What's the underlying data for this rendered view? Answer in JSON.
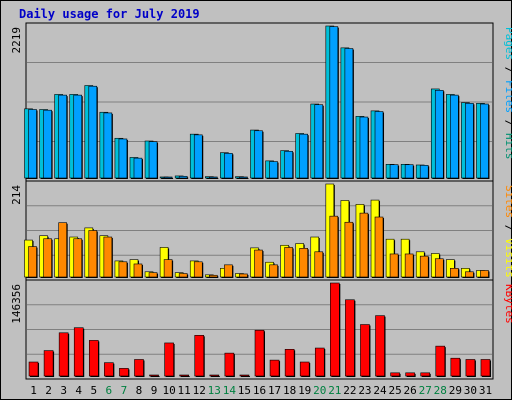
{
  "chart_data": {
    "type": "bar",
    "title": "Daily usage for July 2019",
    "days": [
      "1",
      "2",
      "3",
      "4",
      "5",
      "6",
      "7",
      "8",
      "9",
      "10",
      "11",
      "12",
      "13",
      "14",
      "15",
      "16",
      "17",
      "18",
      "19",
      "20",
      "21",
      "22",
      "23",
      "24",
      "25",
      "26",
      "27",
      "28",
      "29",
      "30",
      "31"
    ],
    "weekend_days": [
      "6",
      "7",
      "13",
      "14",
      "20",
      "21",
      "27",
      "28"
    ],
    "colors": {
      "pages": "#00c0d8",
      "files": "#00a0ff",
      "hits": "#009070",
      "visits": "#ffff00",
      "sites": "#ff8800",
      "kbytes": "#ff0000",
      "weekend_text": "#008040",
      "weekday_text": "#000000",
      "title": "#0000c8"
    },
    "panels": [
      {
        "name": "pages-files-hits",
        "ymax_label": "2219",
        "ymax": 2219,
        "legend": [
          {
            "label": "Pages",
            "color": "#00c0d8"
          },
          {
            "label": " / ",
            "color": "#000000"
          },
          {
            "label": "Files",
            "color": "#00a0ff"
          },
          {
            "label": " / ",
            "color": "#000000"
          },
          {
            "label": "Hits",
            "color": "#009070"
          }
        ],
        "series": [
          {
            "name": "Pages",
            "values": [
              1010,
              1000,
              1220,
              1220,
              1350,
              960,
              580,
              300,
              540,
              15,
              30,
              640,
              20,
              370,
              20,
              700,
              250,
              400,
              650,
              1080,
              2219,
              1900,
              900,
              980,
              200,
              200,
              190,
              1300,
              1220,
              1100,
              1090
            ]
          },
          {
            "name": "Files",
            "values": [
              1000,
              990,
              1210,
              1210,
              1340,
              950,
              570,
              290,
              530,
              10,
              25,
              630,
              15,
              360,
              15,
              690,
              240,
              390,
              640,
              1070,
              2210,
              1890,
              890,
              970,
              195,
              195,
              185,
              1280,
              1210,
              1090,
              1080
            ]
          }
        ]
      },
      {
        "name": "visits-sites",
        "ymax_label": "214",
        "ymax": 214,
        "legend": [
          {
            "label": "Sites",
            "color": "#ff8800"
          },
          {
            "label": " / ",
            "color": "#000000"
          },
          {
            "label": "Visits",
            "color": "#ffff00"
          }
        ],
        "series": [
          {
            "name": "Visits",
            "values": [
              85,
              95,
              88,
              92,
              113,
              95,
              37,
              40,
              12,
              68,
              10,
              37,
              5,
              20,
              8,
              67,
              34,
              73,
              77,
              92,
              214,
              176,
              167,
              177,
              87,
              87,
              58,
              54,
              40,
              20,
              15
            ]
          },
          {
            "name": "Sites",
            "values": [
              70,
              88,
              125,
              88,
              107,
              92,
              35,
              30,
              10,
              40,
              8,
              35,
              4,
              28,
              7,
              62,
              28,
              68,
              66,
              58,
              140,
              126,
              147,
              138,
              53,
              53,
              48,
              42,
              20,
              12,
              15
            ]
          }
        ]
      },
      {
        "name": "kbytes",
        "ymax_label": "146356",
        "ymax": 146356,
        "legend": [
          {
            "label": "KBytes",
            "color": "#ff0000"
          }
        ],
        "series": [
          {
            "name": "KBytes",
            "values": [
              22000,
              40000,
              68000,
              76000,
              56000,
              21000,
              12000,
              26000,
              1500,
              52000,
              1000,
              64000,
              1000,
              36000,
              1000,
              72000,
              25000,
              42000,
              22000,
              44000,
              146356,
              120000,
              81000,
              95000,
              5000,
              5000,
              5000,
              47000,
              28000,
              26000,
              26000
            ]
          }
        ]
      }
    ]
  }
}
